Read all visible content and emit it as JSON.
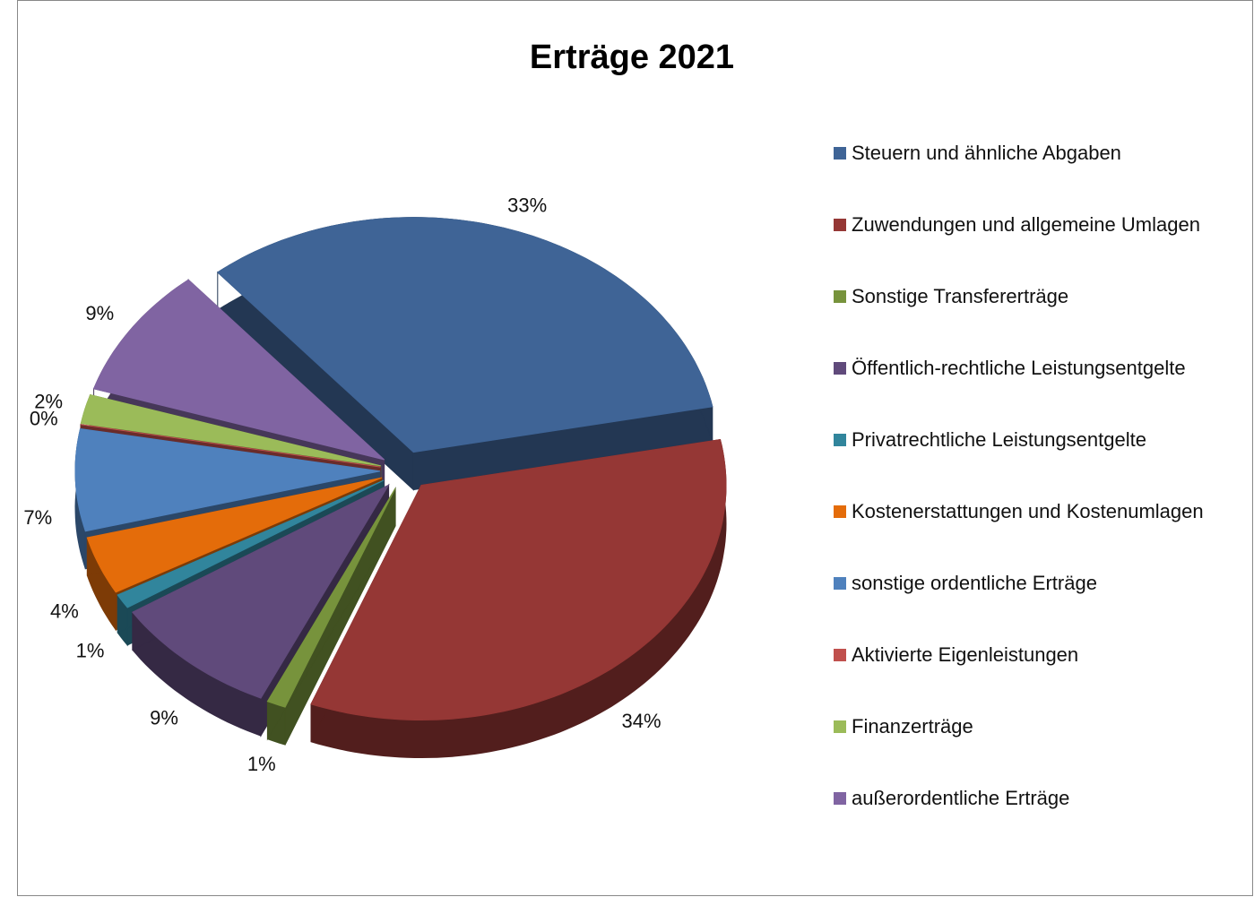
{
  "chart_data": {
    "type": "pie",
    "title": "Erträge 2021",
    "categories": [
      "Steuern und ähnliche Abgaben",
      "Zuwendungen und allgemeine Umlagen",
      "Sonstige Transfererträge",
      "Öffentlich-rechtliche Leistungsentgelte",
      "Privatrechtliche Leistungsentgelte",
      "Kostenerstattungen und Kostenumlagen",
      "sonstige ordentliche Erträge",
      "Aktivierte Eigenleistungen",
      "Finanzerträge",
      "außerordentliche Erträge"
    ],
    "values": [
      33,
      34,
      1,
      9,
      1,
      4,
      7,
      0,
      2,
      9
    ],
    "value_labels": [
      "33%",
      "34%",
      "1%",
      "9%",
      "1%",
      "4%",
      "7%",
      "0%",
      "2%",
      "9%"
    ],
    "colors": [
      "#3f6496",
      "#953735",
      "#77933c",
      "#604a7b",
      "#31859c",
      "#e46c0a",
      "#4f81bd",
      "#c0504d",
      "#9bbb59",
      "#8064a2"
    ],
    "legend": "right"
  }
}
